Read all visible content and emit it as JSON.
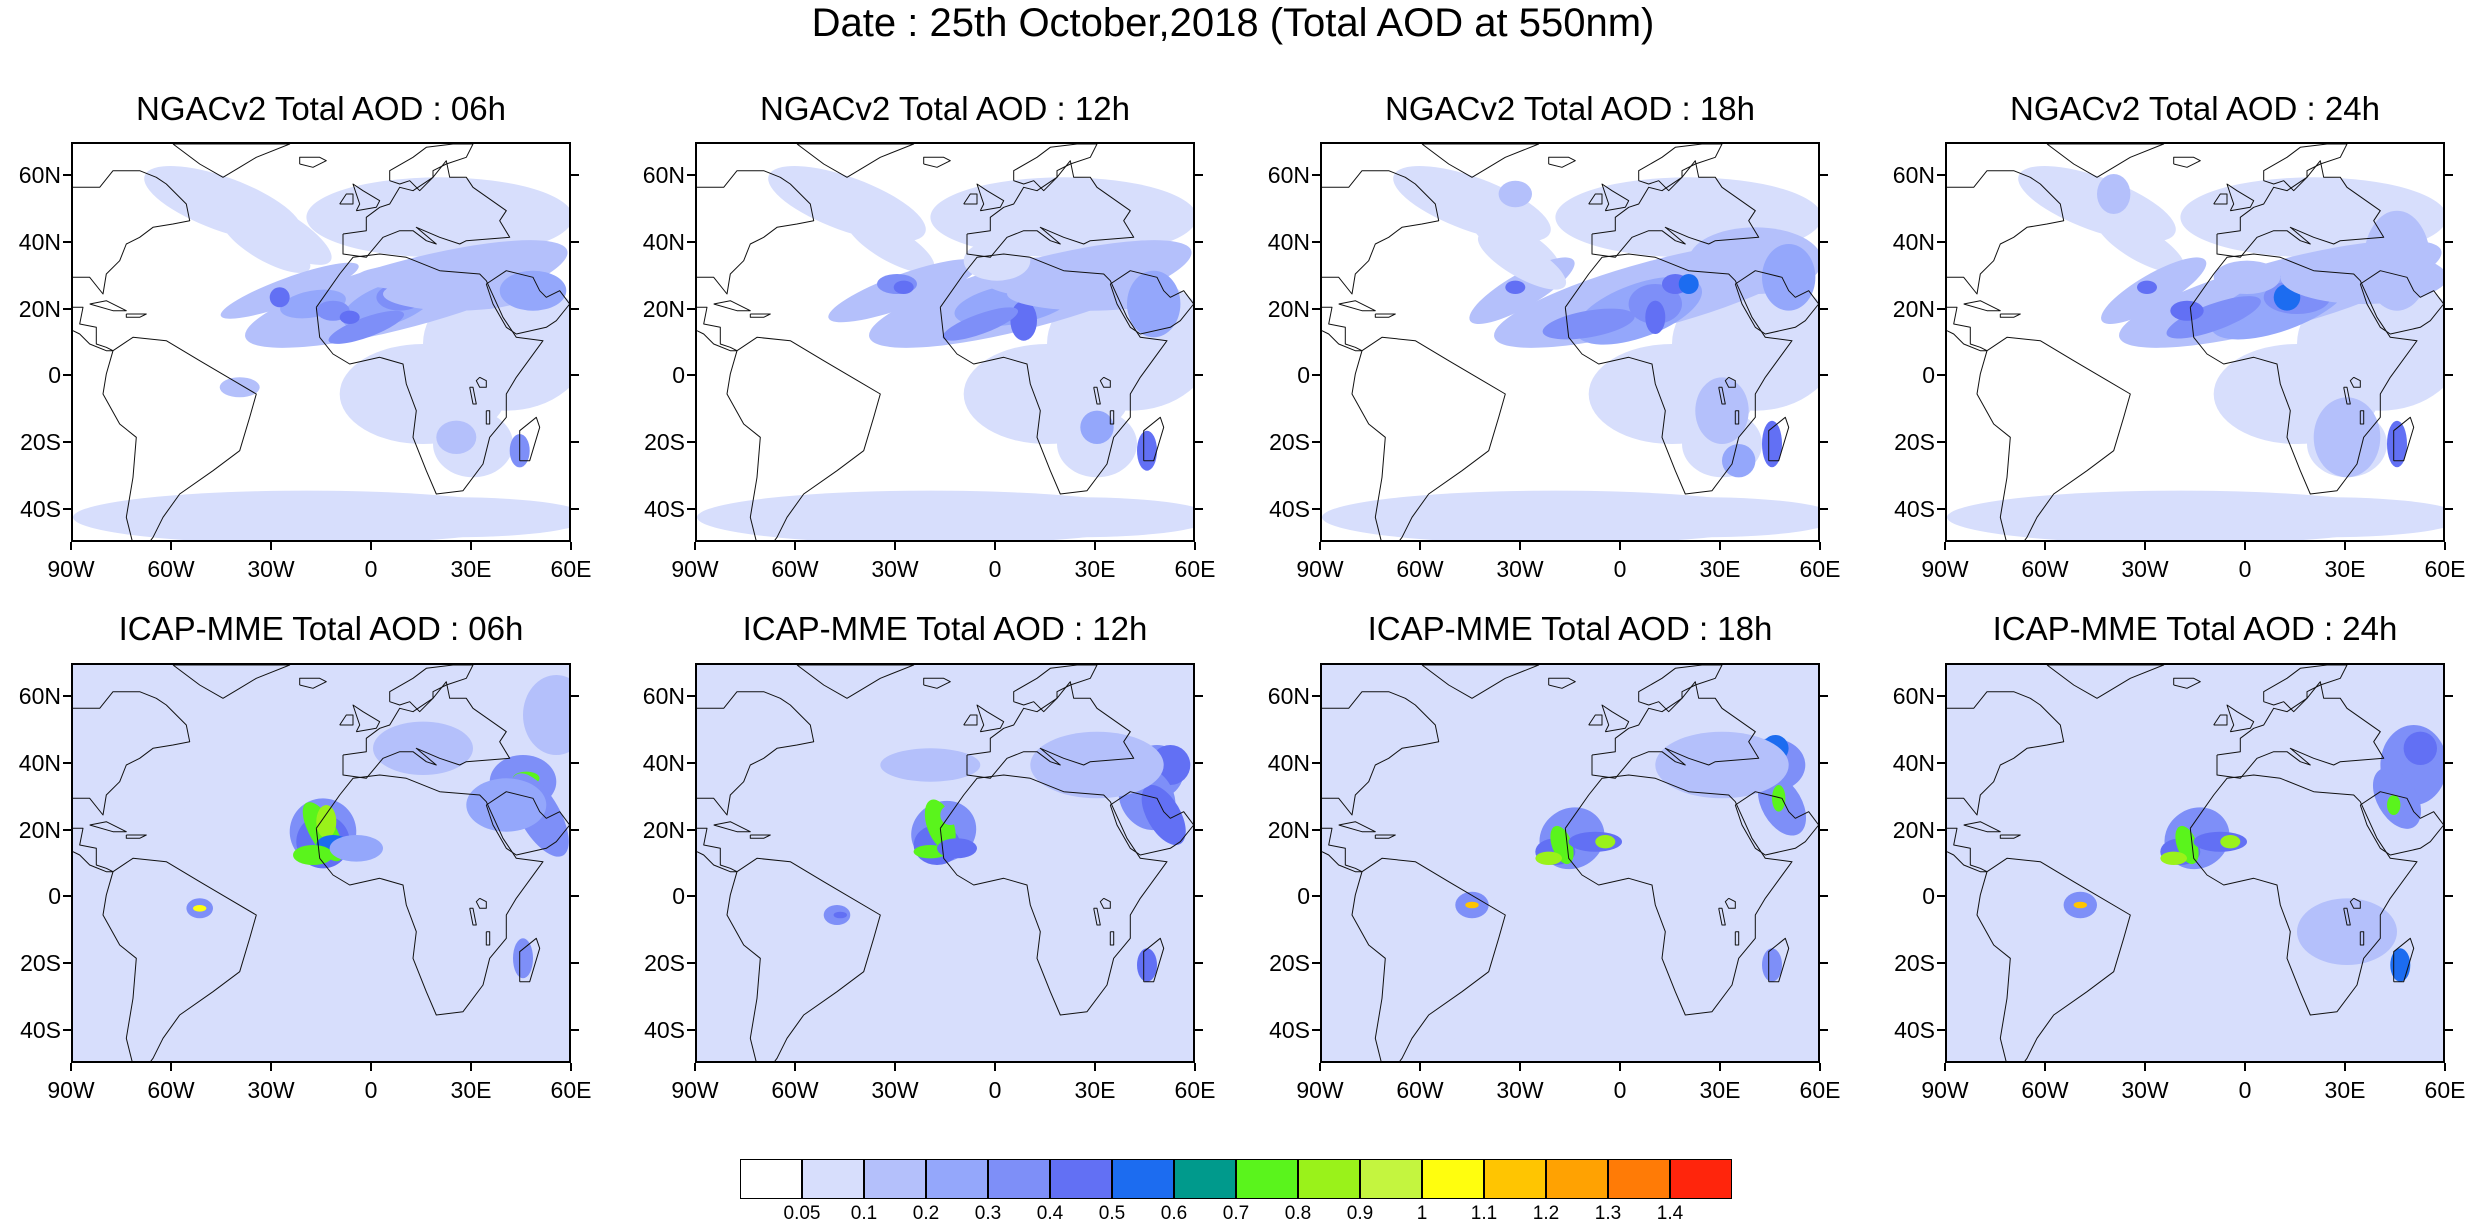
{
  "title": "Date : 25th October,2018 (Total AOD at 550nm)",
  "axes": {
    "lat_ticks": [
      "60N",
      "40N",
      "20N",
      "0",
      "20S",
      "40S"
    ],
    "lon_ticks": [
      "90W",
      "60W",
      "30W",
      "0",
      "30E",
      "60E"
    ]
  },
  "panels": [
    {
      "title": "NGACv2 Total AOD : 06h",
      "model": "NGACv2",
      "lead": "06h"
    },
    {
      "title": "NGACv2 Total AOD : 12h",
      "model": "NGACv2",
      "lead": "12h"
    },
    {
      "title": "NGACv2 Total AOD : 18h",
      "model": "NGACv2",
      "lead": "18h"
    },
    {
      "title": "NGACv2 Total AOD : 24h",
      "model": "NGACv2",
      "lead": "24h"
    },
    {
      "title": "ICAP-MME Total AOD : 06h",
      "model": "ICAP-MME",
      "lead": "06h"
    },
    {
      "title": "ICAP-MME Total AOD : 12h",
      "model": "ICAP-MME",
      "lead": "12h"
    },
    {
      "title": "ICAP-MME Total AOD : 18h",
      "model": "ICAP-MME",
      "lead": "18h"
    },
    {
      "title": "ICAP-MME Total AOD : 24h",
      "model": "ICAP-MME",
      "lead": "24h"
    }
  ],
  "colorbar": {
    "labels": [
      "0.05",
      "0.1",
      "0.2",
      "0.3",
      "0.4",
      "0.5",
      "0.6",
      "0.7",
      "0.8",
      "0.9",
      "1",
      "1.1",
      "1.2",
      "1.3",
      "1.4"
    ],
    "colors": [
      "#ffffff",
      "#d7defc",
      "#b4c0fb",
      "#94a7fb",
      "#7e8ff8",
      "#6270f4",
      "#1c6cf0",
      "#009a8c",
      "#5af41c",
      "#9af21a",
      "#c4f53f",
      "#fffe0e",
      "#ffc501",
      "#ffa202",
      "#ff7b06",
      "#ff250c"
    ]
  }
}
